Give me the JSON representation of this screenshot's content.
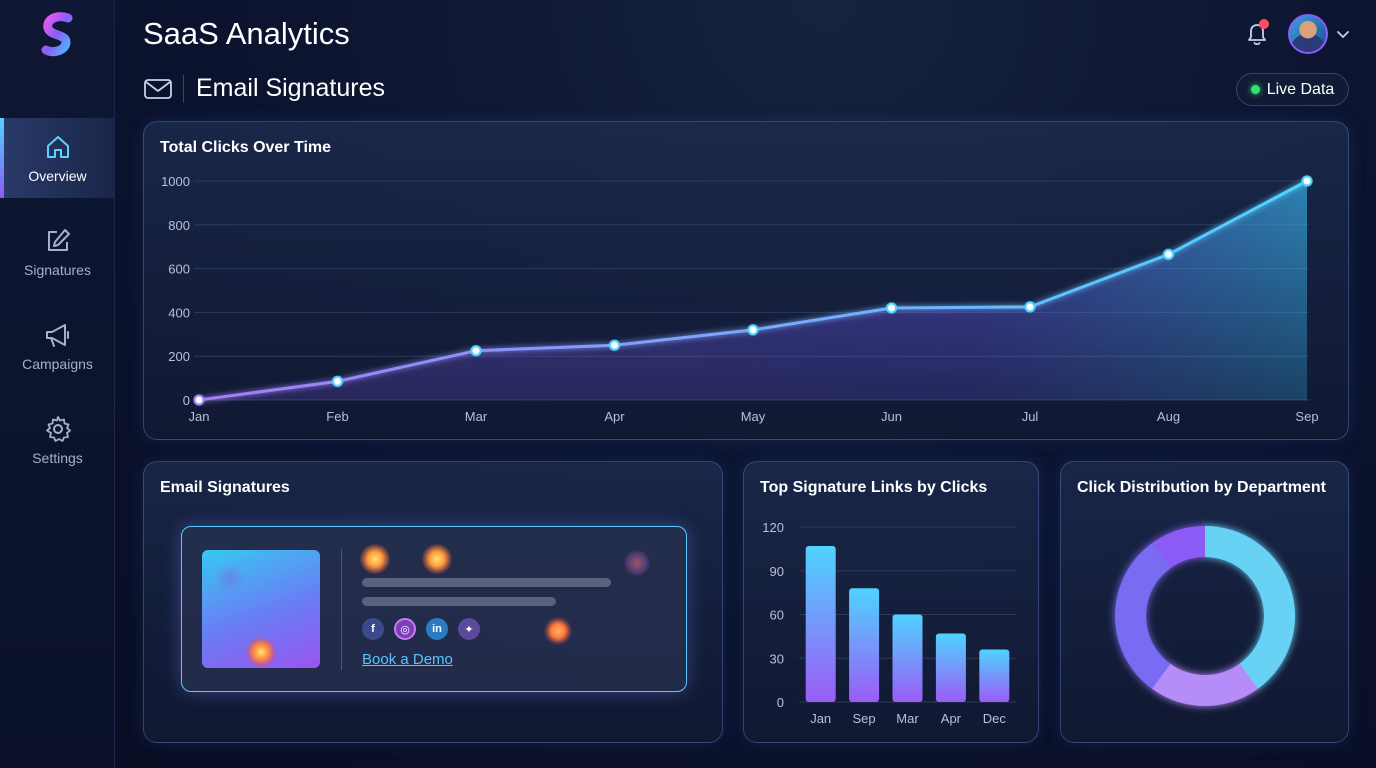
{
  "app": {
    "title": "SaaS Analytics"
  },
  "sidebar": {
    "items": [
      {
        "label": "Overview",
        "icon": "home-icon",
        "active": true
      },
      {
        "label": "Signatures",
        "icon": "edit-icon",
        "active": false
      },
      {
        "label": "Campaigns",
        "icon": "megaphone-icon",
        "active": false
      },
      {
        "label": "Settings",
        "icon": "gear-icon",
        "active": false
      }
    ]
  },
  "header": {
    "page_title": "Email Signatures",
    "live_badge": "Live Data",
    "notification_dot": true
  },
  "colors": {
    "accent_cyan": "#4fd3ff",
    "accent_purple": "#8b5cf6",
    "live_green": "#34e06f",
    "notification_red": "#ff4d5e"
  },
  "signature_card": {
    "title": "Email Signatures",
    "link_label": "Book a Demo",
    "social_icons": [
      "facebook-icon",
      "instagram-icon",
      "linkedin-icon",
      "twitter-icon"
    ]
  },
  "chart_data": [
    {
      "type": "area",
      "title": "Total Clicks Over Time",
      "categories": [
        "Jan",
        "Feb",
        "Mar",
        "Apr",
        "May",
        "Jun",
        "Jul",
        "Aug",
        "Sep"
      ],
      "values": [
        0,
        85,
        225,
        250,
        320,
        420,
        425,
        665,
        1000
      ],
      "ylim": [
        0,
        1000
      ],
      "yticks": [
        0,
        200,
        400,
        600,
        800,
        1000
      ],
      "grid": true
    },
    {
      "type": "bar",
      "title": "Top Signature Links by Clicks",
      "categories": [
        "Jan",
        "Sep",
        "Mar",
        "Apr",
        "Dec"
      ],
      "values": [
        107,
        78,
        60,
        47,
        36
      ],
      "ylim": [
        0,
        120
      ],
      "yticks": [
        0,
        30,
        60,
        90,
        120
      ],
      "grid": true
    },
    {
      "type": "pie",
      "title": "Click Distribution by Department",
      "slices": [
        {
          "value": 40,
          "color": "#67d2f5"
        },
        {
          "value": 20,
          "color": "#b58cf8"
        },
        {
          "value": 30,
          "color": "#7a6cf2"
        },
        {
          "value": 10,
          "color": "#8a5cf5"
        }
      ],
      "donut": true
    }
  ]
}
